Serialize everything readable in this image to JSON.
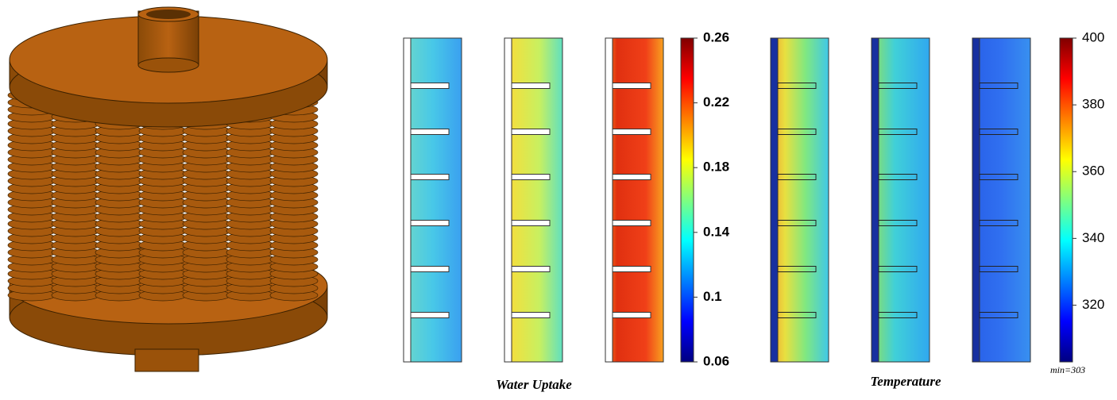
{
  "panels": [
    {
      "caption": "Water Uptake",
      "colorbar": {
        "lim": [
          0.06,
          0.26
        ],
        "ticks": [
          0.26,
          0.22,
          0.18,
          0.14,
          0.1,
          0.06
        ]
      }
    },
    {
      "caption": "Temperature",
      "colorbar": {
        "lim": [
          303,
          400
        ],
        "ticks": [
          400,
          380,
          360,
          340,
          320
        ]
      },
      "note": "min=303"
    }
  ]
}
